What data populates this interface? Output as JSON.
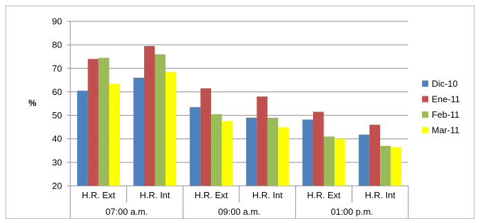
{
  "chart_data": {
    "type": "bar",
    "title": "",
    "xlabel": "",
    "ylabel": "%",
    "ylim": [
      20,
      90
    ],
    "yticks": [
      20,
      30,
      40,
      50,
      60,
      70,
      80,
      90
    ],
    "grid": true,
    "legend_position": "right",
    "categories": [
      "H.R. Ext",
      "H.R. Int",
      "H.R. Ext",
      "H.R. Int",
      "H.R. Ext",
      "H.R. Int"
    ],
    "groups": [
      {
        "label": "07:00 a.m.",
        "categories": [
          "H.R. Ext",
          "H.R. Int"
        ]
      },
      {
        "label": "09:00 a.m.",
        "categories": [
          "H.R. Ext",
          "H.R. Int"
        ]
      },
      {
        "label": "01:00 p.m.",
        "categories": [
          "H.R. Ext",
          "H.R. Int"
        ]
      }
    ],
    "series": [
      {
        "name": "Dic-10",
        "color": "#4f81bd",
        "values": [
          60.5,
          66,
          53.5,
          49,
          48.2,
          41.8
        ]
      },
      {
        "name": "Ene-11",
        "color": "#c0504d",
        "values": [
          74,
          79.5,
          61.5,
          58,
          51.5,
          46
        ]
      },
      {
        "name": "Feb-11",
        "color": "#9bbb59",
        "values": [
          74.5,
          76,
          50.5,
          49,
          41,
          37
        ]
      },
      {
        "name": "Mar-11",
        "color": "#ffff00",
        "values": [
          63.5,
          68.5,
          47.5,
          45,
          40,
          36.5
        ]
      }
    ]
  }
}
